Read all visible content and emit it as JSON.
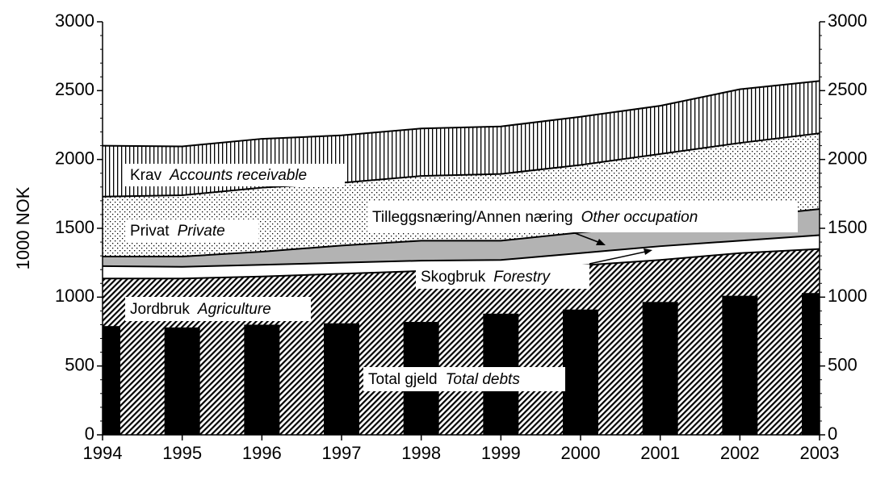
{
  "chart_data": {
    "type": "area",
    "y_label": "1000 NOK",
    "categories": [
      "1994",
      "1995",
      "1996",
      "1997",
      "1998",
      "1999",
      "2000",
      "2001",
      "2002",
      "2003"
    ],
    "ylim": [
      0,
      3000
    ],
    "yticks": [
      0,
      500,
      1000,
      1500,
      2000,
      2500,
      3000
    ],
    "y2lim": [
      0,
      3000
    ],
    "y2ticks": [
      0,
      500,
      1000,
      1500,
      2000,
      2500,
      3000
    ],
    "series": [
      {
        "name": "Jordbruk",
        "name_en": "Agriculture",
        "style": "hatch",
        "color": "#000000",
        "values": [
          1135,
          1135,
          1150,
          1170,
          1190,
          1200,
          1230,
          1270,
          1320,
          1350
        ]
      },
      {
        "name": "Skogbruk",
        "name_en": "Forestry",
        "style": "white",
        "color": "#ffffff",
        "values": [
          90,
          85,
          85,
          80,
          75,
          70,
          90,
          100,
          90,
          100
        ]
      },
      {
        "name": "Tilleggsnæring/Annen næring",
        "name_en": "Other occupation",
        "style": "gray",
        "color": "#b3b3b3",
        "values": [
          70,
          75,
          95,
          125,
          145,
          140,
          150,
          150,
          170,
          190
        ]
      },
      {
        "name": "Privat",
        "name_en": "Private",
        "style": "dots",
        "color": "#000000",
        "values": [
          435,
          445,
          465,
          455,
          470,
          485,
          490,
          520,
          540,
          550
        ]
      },
      {
        "name": "Krav",
        "name_en": "Accounts receivable",
        "style": "vlines",
        "color": "#000000",
        "values": [
          370,
          355,
          355,
          345,
          345,
          345,
          350,
          350,
          390,
          380
        ]
      }
    ],
    "bars": {
      "name": "Total gjeld",
      "name_en": "Total debts",
      "color": "#000000",
      "values": [
        790,
        780,
        800,
        810,
        820,
        880,
        910,
        965,
        1010,
        1030
      ]
    }
  }
}
